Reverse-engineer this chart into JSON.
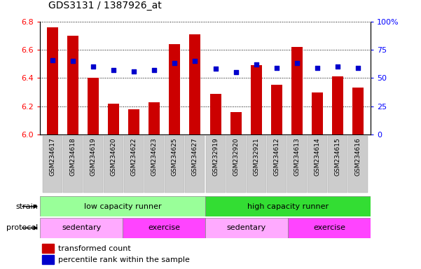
{
  "title": "GDS3131 / 1387926_at",
  "samples": [
    "GSM234617",
    "GSM234618",
    "GSM234619",
    "GSM234620",
    "GSM234622",
    "GSM234623",
    "GSM234625",
    "GSM234627",
    "GSM232919",
    "GSM232920",
    "GSM232921",
    "GSM234612",
    "GSM234613",
    "GSM234614",
    "GSM234615",
    "GSM234616"
  ],
  "bar_values": [
    6.76,
    6.7,
    6.4,
    6.22,
    6.18,
    6.23,
    6.64,
    6.71,
    6.29,
    6.16,
    6.49,
    6.35,
    6.62,
    6.3,
    6.41,
    6.33
  ],
  "percentile_values": [
    66,
    65,
    60,
    57,
    56,
    57,
    63,
    65,
    58,
    55,
    62,
    59,
    63,
    59,
    60,
    59
  ],
  "ylim_left": [
    6.0,
    6.8
  ],
  "ylim_right": [
    0,
    100
  ],
  "yticks_left": [
    6.0,
    6.2,
    6.4,
    6.6,
    6.8
  ],
  "yticks_right": [
    0,
    25,
    50,
    75,
    100
  ],
  "bar_color": "#cc0000",
  "dot_color": "#0000cc",
  "strain_low": "low capacity runner",
  "strain_high": "high capacity runner",
  "protocol_sed1": "sedentary",
  "protocol_ex1": "exercise",
  "protocol_sed2": "sedentary",
  "protocol_ex2": "exercise",
  "strain_low_color": "#99ff99",
  "strain_high_color": "#33dd33",
  "protocol_sed_color": "#ffaaff",
  "protocol_ex_color": "#ff44ff",
  "legend_bar_label": "transformed count",
  "legend_dot_label": "percentile rank within the sample",
  "tick_bg_color": "#cccccc"
}
